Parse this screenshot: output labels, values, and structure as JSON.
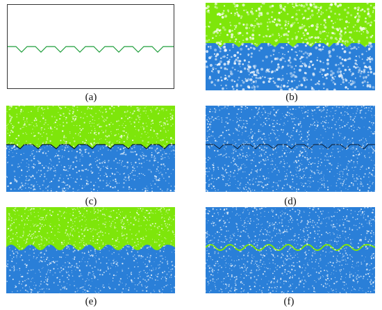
{
  "captions": {
    "a": "(a)",
    "b": "(b)",
    "c": "(c)",
    "d": "(d)",
    "e": "(e)",
    "f": "(f)"
  },
  "colors": {
    "interface_line": "#1e9e3a",
    "green_material": "#7ee60a",
    "blue_material": "#2a7fd8",
    "dark_interface": "#0a1a2e",
    "speckle": "#ffffff"
  }
}
